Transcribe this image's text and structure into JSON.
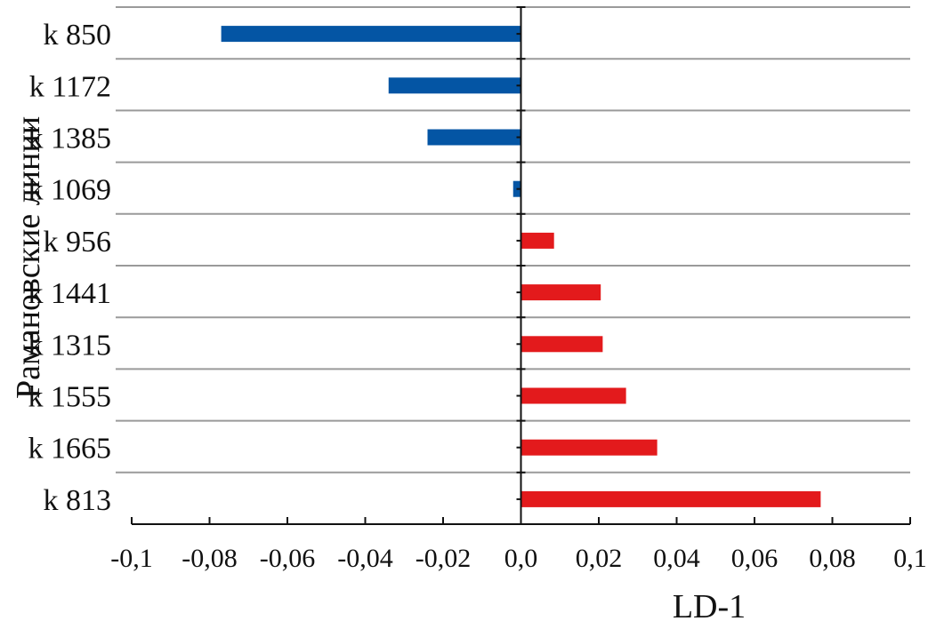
{
  "chart_data": {
    "type": "bar",
    "orientation": "horizontal",
    "title": "",
    "xlabel": "LD-1",
    "ylabel": "Рамановские линии",
    "xlim": [
      -0.1,
      0.1
    ],
    "xticks": [
      -0.1,
      -0.08,
      -0.06,
      -0.04,
      -0.02,
      0.0,
      0.02,
      0.04,
      0.06,
      0.08,
      0.1
    ],
    "xtick_labels": [
      "-0,1",
      "-0,08",
      "-0,06",
      "-0,04",
      "-0,02",
      "0,0",
      "0,02",
      "0,04",
      "0,06",
      "0,08",
      "0,1"
    ],
    "grid": "horizontal",
    "categories": [
      "k 850",
      "k 1172",
      "k 1385",
      "k 1069",
      "k 956",
      "k 1441",
      "k 1315",
      "k 1555",
      "k 1665",
      "k 813"
    ],
    "values": [
      -0.077,
      -0.034,
      -0.024,
      -0.002,
      0.0085,
      0.0205,
      0.021,
      0.027,
      0.035,
      0.077
    ],
    "colors": {
      "negative": "#0455a4",
      "positive": "#e31a1c"
    }
  }
}
